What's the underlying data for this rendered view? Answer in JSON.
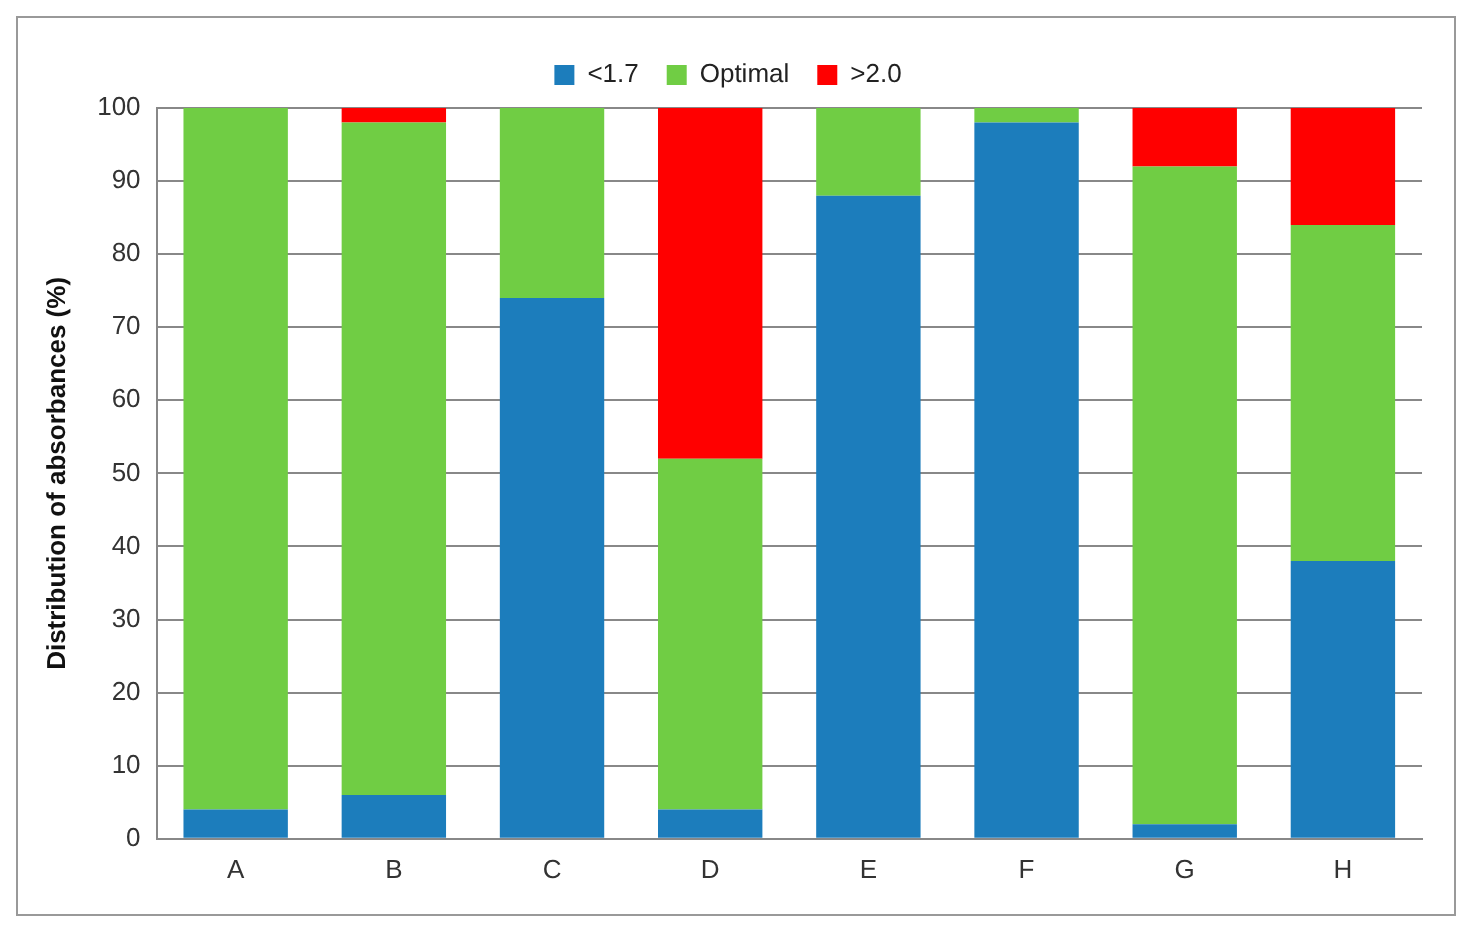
{
  "chart_data": {
    "type": "bar",
    "stacked": true,
    "ylabel": "Distribution of absorbances (%)",
    "categories": [
      "A",
      "B",
      "C",
      "D",
      "E",
      "F",
      "G",
      "H"
    ],
    "series": [
      {
        "name": "<1.7",
        "color": "#1c7dbc",
        "values": [
          4,
          6,
          74,
          4,
          88,
          98,
          2,
          38
        ]
      },
      {
        "name": "Optimal",
        "color": "#70cd44",
        "values": [
          96,
          92,
          26,
          48,
          12,
          2,
          90,
          46
        ]
      },
      {
        "name": ">2.0",
        "color": "#ff0000",
        "values": [
          0,
          2,
          0,
          48,
          0,
          0,
          8,
          16
        ]
      }
    ],
    "ylim": [
      0,
      100
    ],
    "yticks": [
      0,
      10,
      20,
      30,
      40,
      50,
      60,
      70,
      80,
      90,
      100
    ],
    "grid": "y",
    "legend": "top"
  }
}
